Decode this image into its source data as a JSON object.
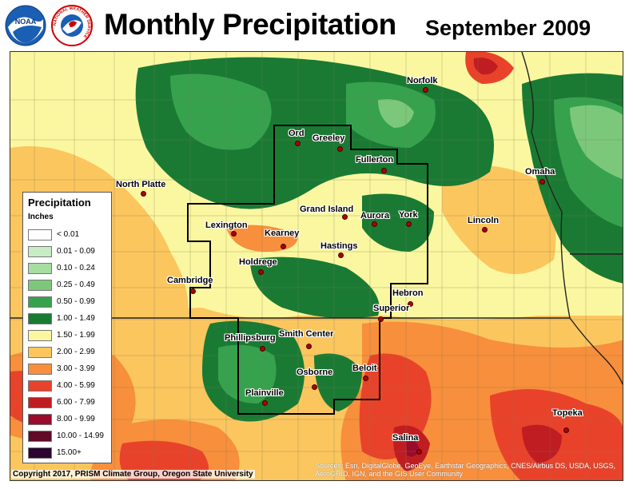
{
  "header": {
    "title": "Monthly Precipitation",
    "period": "September 2009",
    "logos": [
      {
        "name": "noaa-logo",
        "text": "NOAA"
      },
      {
        "name": "nws-logo",
        "text": "NATIONAL WEATHER SERVICE"
      }
    ]
  },
  "legend": {
    "title": "Precipitation",
    "units": "Inches",
    "classes": [
      {
        "label": "< 0.01",
        "color": "#ffffff"
      },
      {
        "label": "0.01 - 0.09",
        "color": "#c8ecc4"
      },
      {
        "label": "0.10 - 0.24",
        "color": "#a6dda0"
      },
      {
        "label": "0.25 - 0.49",
        "color": "#7cc87a"
      },
      {
        "label": "0.50 - 0.99",
        "color": "#36a24e"
      },
      {
        "label": "1.00 - 1.49",
        "color": "#1a7a33"
      },
      {
        "label": "1.50 - 1.99",
        "color": "#fbf7a0"
      },
      {
        "label": "2.00 - 2.99",
        "color": "#fbc65e"
      },
      {
        "label": "3.00 - 3.99",
        "color": "#f88f3c"
      },
      {
        "label": "4.00 - 5.99",
        "color": "#e8432a"
      },
      {
        "label": "6.00 - 7.99",
        "color": "#c01d22"
      },
      {
        "label": "8.00 - 9.99",
        "color": "#9b0b2c"
      },
      {
        "label": "10.00 - 14.99",
        "color": "#5f0b28"
      },
      {
        "label": "15.00+",
        "color": "#2c0530"
      }
    ]
  },
  "cities": [
    {
      "name": "Norfolk"
    },
    {
      "name": "Ord"
    },
    {
      "name": "Greeley"
    },
    {
      "name": "Fullerton"
    },
    {
      "name": "Omaha"
    },
    {
      "name": "North Platte"
    },
    {
      "name": "Grand Island"
    },
    {
      "name": "Aurora"
    },
    {
      "name": "York"
    },
    {
      "name": "Lincoln"
    },
    {
      "name": "Lexington"
    },
    {
      "name": "Kearney"
    },
    {
      "name": "Hastings"
    },
    {
      "name": "Holdrege"
    },
    {
      "name": "Cambridge"
    },
    {
      "name": "Hebron"
    },
    {
      "name": "Superior"
    },
    {
      "name": "Phillipsburg"
    },
    {
      "name": "Smith Center"
    },
    {
      "name": "Beloit"
    },
    {
      "name": "Osborne"
    },
    {
      "name": "Plainville"
    },
    {
      "name": "Topeka"
    },
    {
      "name": "Salina"
    }
  ],
  "footer": {
    "copyright": "Copyright 2017, PRISM Climate Group, Oregon State University",
    "sources": "Sources: Esri, DigitalGlobe, GeoEye, Earthstar Geographics, CNES/Airbus DS, USDA, USGS, AeroGRID, IGN, and the GIS User Community"
  }
}
